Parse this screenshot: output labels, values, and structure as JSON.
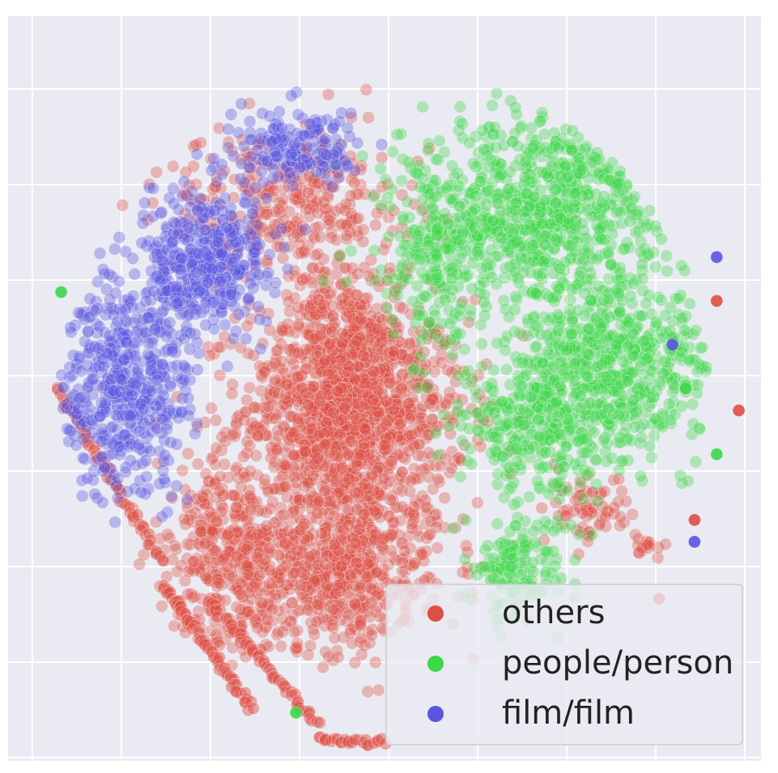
{
  "chart_data": {
    "type": "scatter",
    "title": "",
    "xlabel": "",
    "ylabel": "",
    "grid": true,
    "legend_position": "bottom-right",
    "xlim": [
      -85,
      85
    ],
    "ylim": [
      -85,
      85
    ],
    "marker_alpha": 0.35,
    "series": [
      {
        "name": "others",
        "color": "#dd4f45",
        "clusters": [
          {
            "center": [
              -7,
              -5
            ],
            "spread": [
              17,
              17
            ],
            "count": 1100
          },
          {
            "center": [
              -10,
              -40
            ],
            "spread": [
              16,
              13
            ],
            "count": 650
          },
          {
            "center": [
              -35,
              -38
            ],
            "spread": [
              11,
              14
            ],
            "count": 350
          },
          {
            "center": [
              -22,
              42
            ],
            "spread": [
              18,
              12
            ],
            "count": 300
          },
          {
            "center": [
              -10,
              5
            ],
            "spread": [
              8,
              25
            ],
            "count": 400
          },
          {
            "center": [
              46,
              -28
            ],
            "spread": [
              5,
              6
            ],
            "count": 70
          },
          {
            "center": [
              60,
              -36
            ],
            "spread": [
              3,
              2
            ],
            "count": 15
          }
        ],
        "arcs": [
          {
            "start": [
              -74,
              0
            ],
            "end": [
              -50,
              -40
            ],
            "count": 60
          },
          {
            "start": [
              -50,
              -45
            ],
            "end": [
              -30,
              -73
            ],
            "count": 60
          },
          {
            "start": [
              -40,
              -48
            ],
            "end": [
              -15,
              -77
            ],
            "count": 55
          },
          {
            "start": [
              -15,
              -80
            ],
            "end": [
              0,
              -81
            ],
            "count": 25
          }
        ],
        "outliers": [
          [
            62,
            -48
          ],
          [
            70,
            -30
          ],
          [
            75,
            20
          ],
          [
            80,
            -5
          ]
        ]
      },
      {
        "name": "people/person",
        "color": "#3fd64a",
        "clusters": [
          {
            "center": [
              35,
              40
            ],
            "spread": [
              18,
              14
            ],
            "count": 750
          },
          {
            "center": [
              50,
              5
            ],
            "spread": [
              15,
              14
            ],
            "count": 650
          },
          {
            "center": [
              33,
              -10
            ],
            "spread": [
              12,
              10
            ],
            "count": 250
          },
          {
            "center": [
              30,
              -40
            ],
            "spread": [
              8,
              7
            ],
            "count": 160
          },
          {
            "center": [
              12,
              30
            ],
            "spread": [
              8,
              14
            ],
            "count": 180
          }
        ],
        "outliers": [
          [
            -73,
            22
          ],
          [
            75,
            -15
          ],
          [
            68,
            0
          ],
          [
            -20,
            -74
          ]
        ]
      },
      {
        "name": "film/film",
        "color": "#5a55df",
        "clusters": [
          {
            "center": [
              -40,
              28
            ],
            "spread": [
              10,
              11
            ],
            "count": 420
          },
          {
            "center": [
              -58,
              0
            ],
            "spread": [
              10,
              17
            ],
            "count": 480
          },
          {
            "center": [
              -20,
              55
            ],
            "spread": [
              10,
              6
            ],
            "count": 170
          }
        ],
        "outliers": [
          [
            75,
            30
          ],
          [
            70,
            -35
          ],
          [
            65,
            10
          ]
        ]
      }
    ]
  }
}
